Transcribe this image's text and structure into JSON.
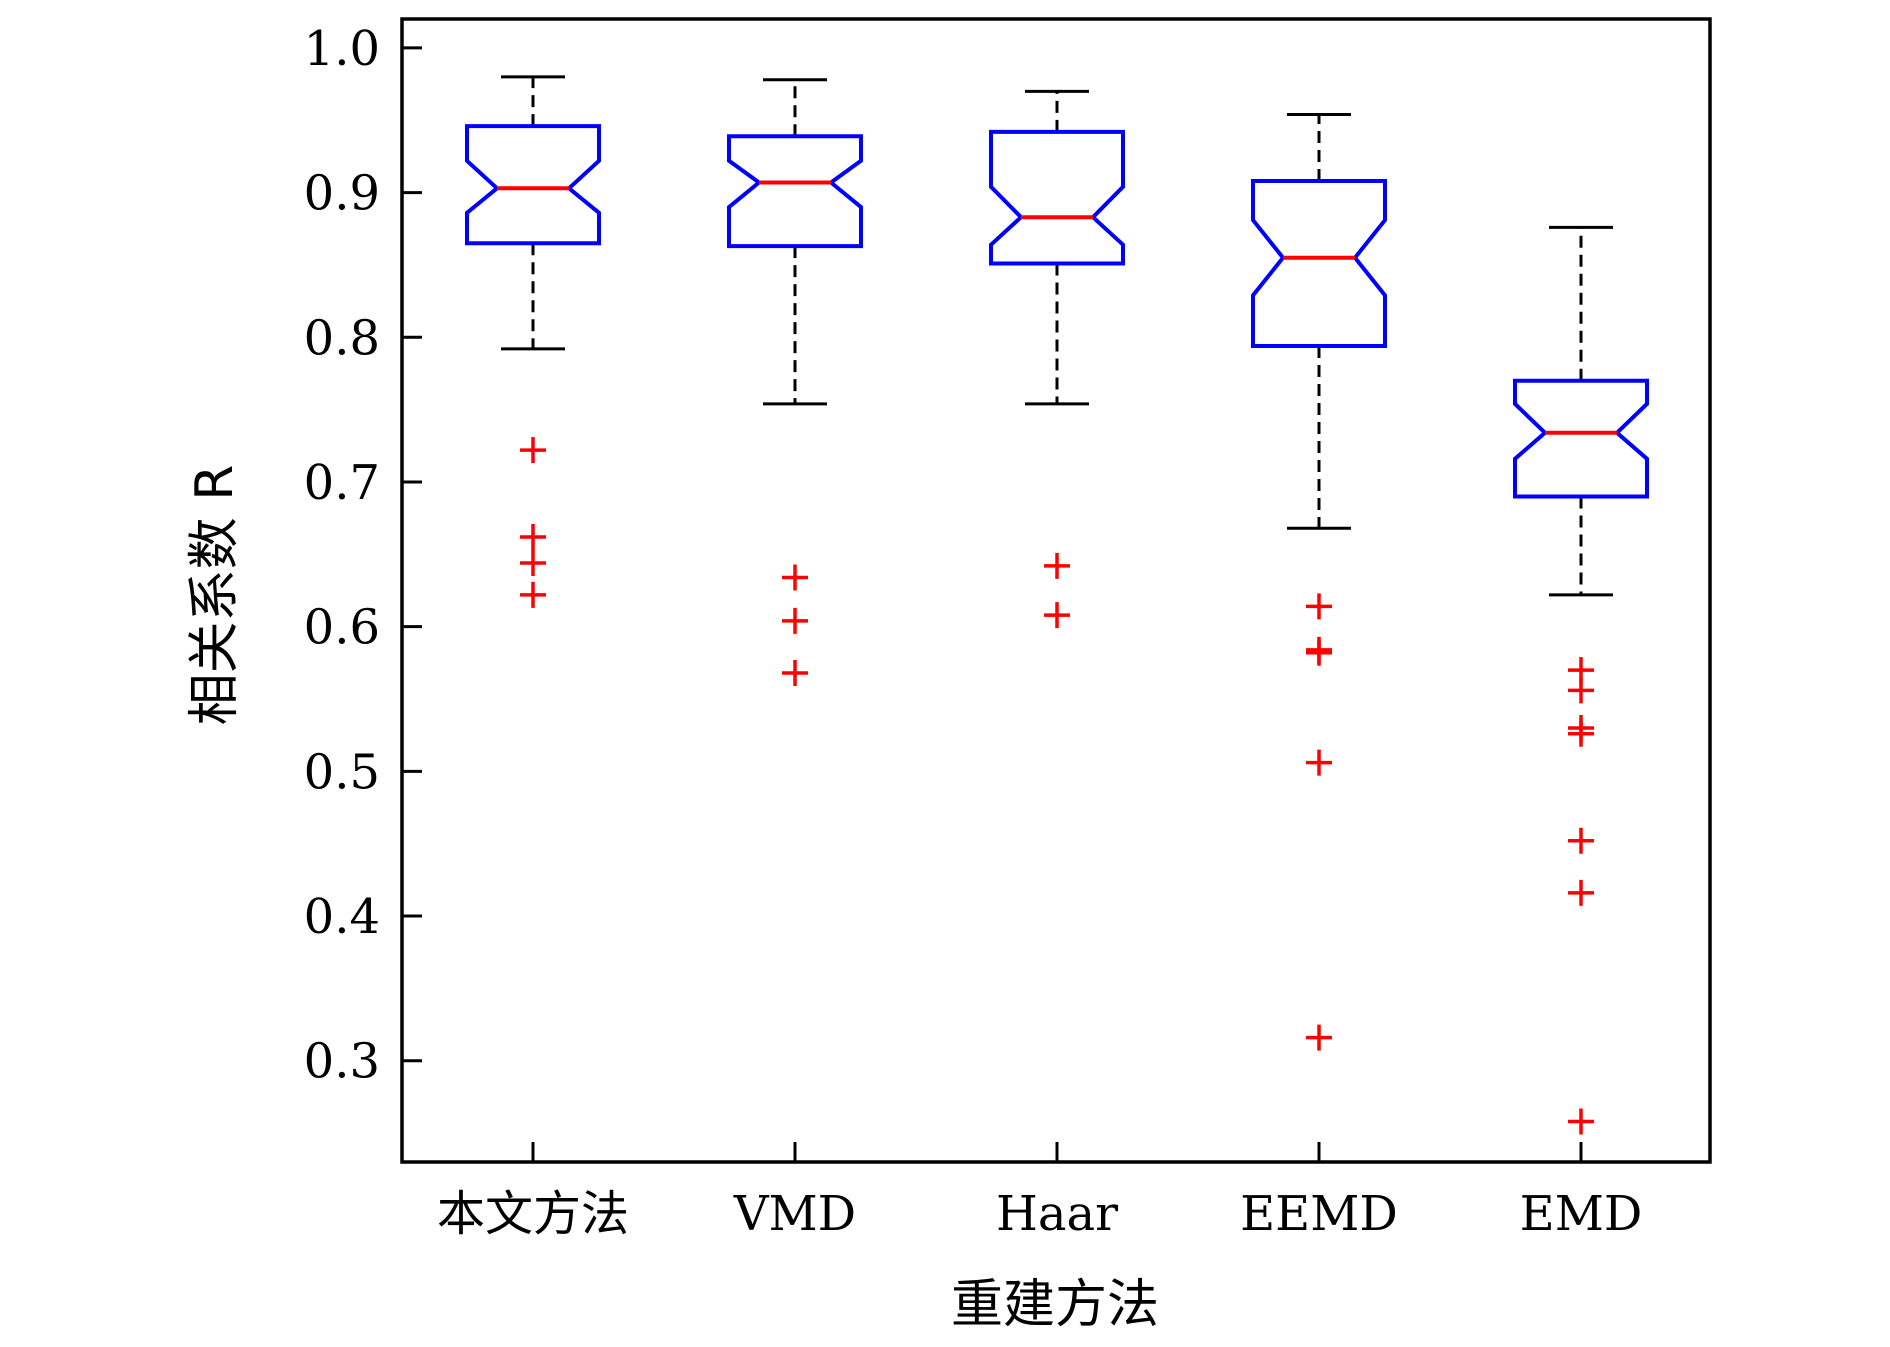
{
  "chart_data": {
    "type": "boxplot",
    "title": "",
    "xlabel": "重建方法",
    "ylabel": "相关系数 R",
    "ylim": [
      0.23,
      1.02
    ],
    "yticks": [
      1.0,
      0.9,
      0.8,
      0.7,
      0.6,
      0.5,
      0.4,
      0.3
    ],
    "ytick_labels": [
      "1.0",
      "0.9",
      "0.8",
      "0.7",
      "0.6",
      "0.5",
      "0.4",
      "0.3"
    ],
    "grid": false,
    "notched": true,
    "colors": {
      "box": "#0000ff",
      "median": "#ff0000",
      "whisker": "#000000",
      "outlier": "#ff0000",
      "axis": "#000000"
    },
    "categories": [
      "本文方法",
      "VMD",
      "Haar",
      "EEMD",
      "EMD"
    ],
    "boxes": [
      {
        "label": "本文方法",
        "q1": 0.865,
        "median": 0.903,
        "q3": 0.946,
        "notch_low": 0.886,
        "notch_high": 0.922,
        "whisker_low": 0.792,
        "whisker_high": 0.98,
        "outliers": [
          0.722,
          0.662,
          0.644,
          0.622
        ]
      },
      {
        "label": "VMD",
        "q1": 0.863,
        "median": 0.907,
        "q3": 0.939,
        "notch_low": 0.89,
        "notch_high": 0.922,
        "whisker_low": 0.754,
        "whisker_high": 0.978,
        "outliers": [
          0.634,
          0.604,
          0.568
        ]
      },
      {
        "label": "Haar",
        "q1": 0.851,
        "median": 0.883,
        "q3": 0.942,
        "notch_low": 0.864,
        "notch_high": 0.904,
        "whisker_low": 0.754,
        "whisker_high": 0.97,
        "outliers": [
          0.642,
          0.608
        ]
      },
      {
        "label": "EEMD",
        "q1": 0.794,
        "median": 0.855,
        "q3": 0.908,
        "notch_low": 0.829,
        "notch_high": 0.881,
        "whisker_low": 0.668,
        "whisker_high": 0.954,
        "outliers": [
          0.614,
          0.584,
          0.582,
          0.506,
          0.316
        ]
      },
      {
        "label": "EMD",
        "q1": 0.69,
        "median": 0.734,
        "q3": 0.77,
        "notch_low": 0.716,
        "notch_high": 0.754,
        "whisker_low": 0.622,
        "whisker_high": 0.876,
        "outliers": [
          0.57,
          0.556,
          0.53,
          0.526,
          0.452,
          0.416,
          0.258
        ]
      }
    ]
  }
}
